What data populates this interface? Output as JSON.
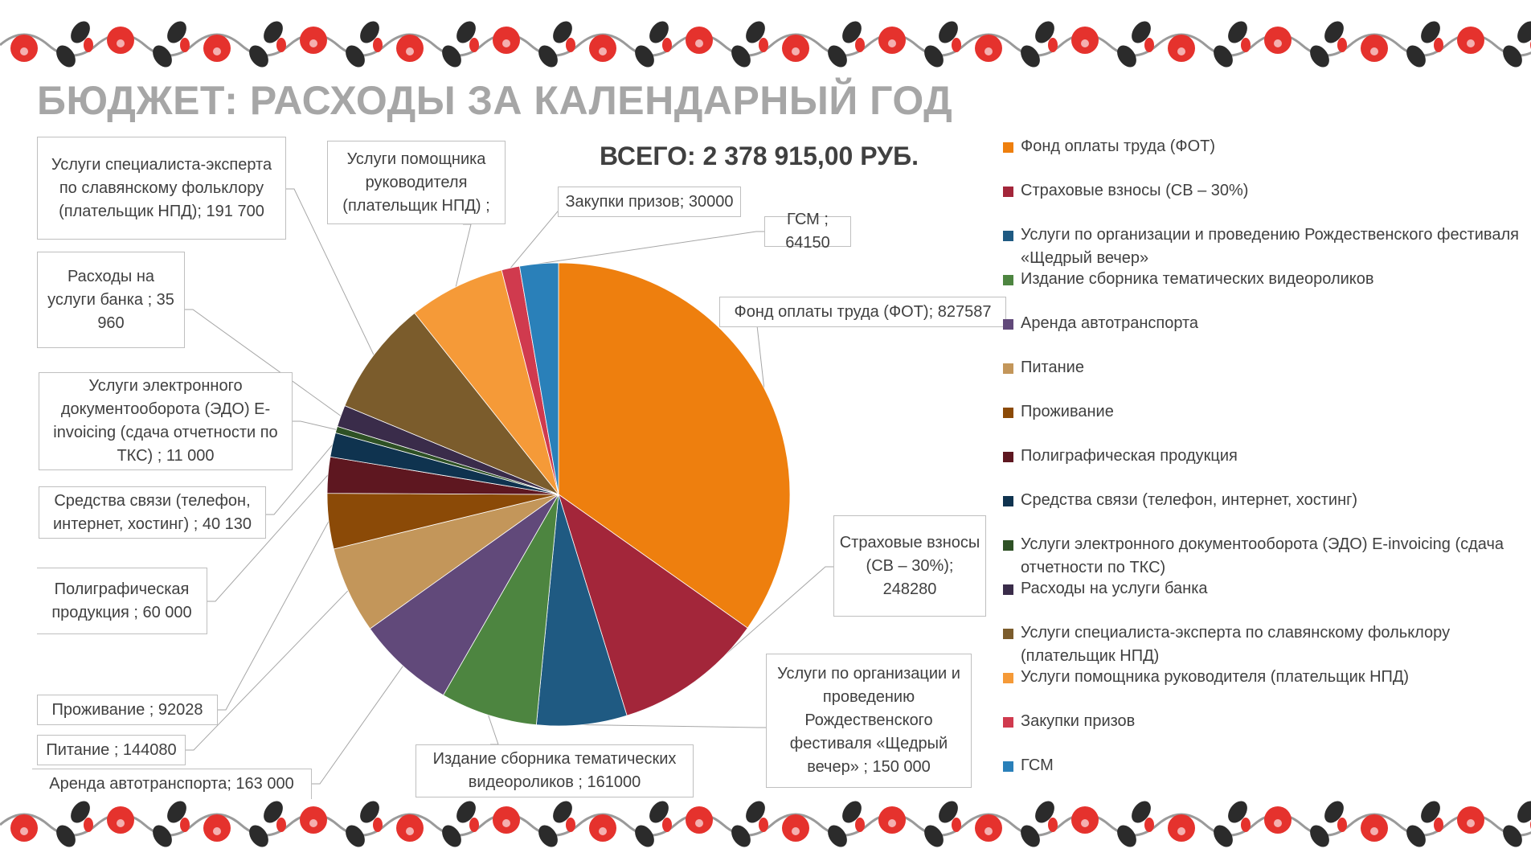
{
  "title": "БЮДЖЕТ: РАСХОДЫ ЗА КАЛЕНДАРНЫЙ ГОД",
  "total": "ВСЕГО: 2 378 915,00 РУБ.",
  "chart_data": {
    "type": "pie",
    "title": "БЮДЖЕТ: РАСХОДЫ ЗА КАЛЕНДАРНЫЙ ГОД",
    "subtitle": "ВСЕГО: 2 378 915,00 РУБ.",
    "legend_position": "right",
    "start_angle": "12 o'clock, clockwise",
    "slices": [
      {
        "name": "Фонд оплаты труда (ФОТ)",
        "value": 827587,
        "color": "#ee7f0e",
        "label": "Фонд оплаты труда (ФОТ); 827587"
      },
      {
        "name": "Страховые взносы (СВ – 30%)",
        "value": 248280,
        "color": "#a3263a",
        "label": "Страховые взносы (СВ – 30%); 248280"
      },
      {
        "name": "Услуги по организации и проведению Рождественского фестиваля «Щедрый вечер»",
        "value": 150000,
        "color": "#1f5a82",
        "label": "Услуги по организации и проведению Рождественского фестиваля «Щедрый вечер» ; 150 000"
      },
      {
        "name": "Издание сборника тематических видеороликов",
        "value": 161000,
        "color": "#4d8540",
        "label": "Издание сборника тематических видеороликов ; 161000"
      },
      {
        "name": "Аренда автотранспорта",
        "value": 163000,
        "color": "#61497a",
        "label": "Аренда автотранспорта; 163 000"
      },
      {
        "name": "Питание",
        "value": 144080,
        "color": "#c3965a",
        "label": "Питание ; 144080"
      },
      {
        "name": "Проживание",
        "value": 92028,
        "color": "#8b4a07",
        "label": "Проживание ; 92028"
      },
      {
        "name": "Полиграфическая продукция",
        "value": 60000,
        "color": "#5e1720",
        "label": "Полиграфическая продукция ; 60 000"
      },
      {
        "name": "Средства связи (телефон, интернет, хостинг)",
        "value": 40130,
        "color": "#0f334f",
        "label": "Средства связи (телефон, интернет, хостинг) ; 40 130"
      },
      {
        "name": "Услуги электронного документооборота (ЭДО) E-invoicing (сдача отчетности по ТКС)",
        "value": 11000,
        "color": "#2e5125",
        "label": "Услуги электронного документооборота (ЭДО) E-invoicing (сдача отчетности по ТКС) ; 11 000"
      },
      {
        "name": "Расходы на услуги банка",
        "value": 35960,
        "color": "#3a2c4a",
        "label": "Расходы на услуги банка ; 35 960"
      },
      {
        "name": "Услуги специалиста-эксперта по славянскому фольклору (плательщик НПД)",
        "value": 191700,
        "color": "#7b5c2c",
        "label": "Услуги специалиста-эксперта по славянскому фольклору (плательщик НПД); 191 700"
      },
      {
        "name": "Услуги помощника руководителя (плательщик НПД)",
        "value": 160000,
        "value_note": "not printed; estimated from total",
        "color": "#f59a38",
        "label": "Услуги помощника руководителя (плательщик НПД) ;"
      },
      {
        "name": "Закупки призов",
        "value": 30000,
        "color": "#d03a4e",
        "label": "Закупки призов; 30000"
      },
      {
        "name": "ГСМ",
        "value": 64150,
        "color": "#2a80b9",
        "label": "ГСМ ; 64150"
      }
    ]
  },
  "labels": {
    "fot": "Фонд оплаты труда (ФОТ); 827587",
    "sv": "Страховые взносы (СВ – 30%); 248280",
    "org": "Услуги по организации и проведению Рождественского фестиваля «Щедрый вечер» ; 150 000",
    "izd": "Издание сборника тематических видеороликов ; 161000",
    "arenda": "Аренда автотранспорта; 163 000",
    "pitanie": "Питание ; 144080",
    "prozh": "Проживание ; 92028",
    "polig": "Полиграфическая продукция ; 60 000",
    "svyaz": "Средства связи (телефон, интернет, хостинг) ; 40 130",
    "edo": "Услуги электронного документооборота (ЭДО) E-invoicing (сдача отчетности по ТКС) ; 11 000",
    "bank": "Расходы на услуги банка ; 35 960",
    "expert": "Услуги специалиста-эксперта по славянскому фольклору (плательщик НПД); 191 700",
    "pomosh": "Услуги помощника руководителя (плательщик НПД) ;",
    "prizy": "Закупки призов; 30000",
    "gsm": "ГСМ ; 64150"
  },
  "legend": [
    {
      "label": "Фонд оплаты труда (ФОТ)",
      "color": "#ee7f0e"
    },
    {
      "label": "Страховые взносы (СВ – 30%)",
      "color": "#a3263a"
    },
    {
      "label": "Услуги по организации и проведению Рождественского фестиваля «Щедрый вечер»",
      "color": "#1f5a82"
    },
    {
      "label": "Издание сборника тематических видеороликов",
      "color": "#4d8540"
    },
    {
      "label": "Аренда автотранспорта",
      "color": "#61497a"
    },
    {
      "label": "Питание",
      "color": "#c3965a"
    },
    {
      "label": "Проживание",
      "color": "#8b4a07"
    },
    {
      "label": "Полиграфическая продукция",
      "color": "#5e1720"
    },
    {
      "label": "Средства связи (телефон, интернет, хостинг)",
      "color": "#0f334f"
    },
    {
      "label": "Услуги электронного документооборота (ЭДО) E-invoicing (сдача отчетности по ТКС)",
      "color": "#2e5125"
    },
    {
      "label": "Расходы на услуги банка",
      "color": "#3a2c4a"
    },
    {
      "label": "Услуги специалиста-эксперта по славянскому фольклору (плательщик НПД)",
      "color": "#7b5c2c"
    },
    {
      "label": "Услуги помощника руководителя (плательщик НПД)",
      "color": "#f59a38"
    },
    {
      "label": "Закупки призов",
      "color": "#d03a4e"
    },
    {
      "label": "ГСМ",
      "color": "#2a80b9"
    }
  ],
  "decor": {
    "border_red": "#e5322d",
    "border_black": "#2b2b2b",
    "border_grey": "#9a9a9a"
  }
}
